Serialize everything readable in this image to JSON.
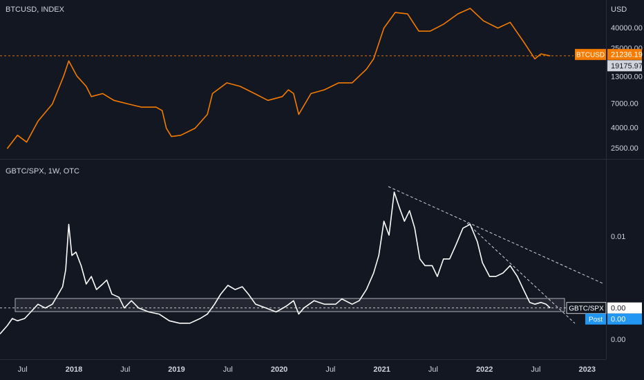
{
  "chart_data": [
    {
      "type": "line",
      "title": "BTCUSD, INDEX",
      "y_axis_label": "USD",
      "log_scale": true,
      "xlim": [
        2017.28,
        2023.17
      ],
      "ylim": [
        1970,
        77000
      ],
      "yticks": [
        {
          "value": 2500,
          "label": "2500.00"
        },
        {
          "value": 4000,
          "label": "4000.00"
        },
        {
          "value": 7000,
          "label": "7000.00"
        },
        {
          "value": 13000,
          "label": "13000.00"
        },
        {
          "value": 25000,
          "label": "25000.00"
        },
        {
          "value": 40000,
          "label": "40000.00"
        }
      ],
      "series": [
        {
          "name": "BTCUSD",
          "color": "#f57c00",
          "x": [
            2017.35,
            2017.45,
            2017.54,
            2017.65,
            2017.79,
            2017.9,
            2017.95,
            2018.03,
            2018.12,
            2018.17,
            2018.28,
            2018.39,
            2018.53,
            2018.66,
            2018.8,
            2018.86,
            2018.9,
            2018.95,
            2019.04,
            2019.18,
            2019.3,
            2019.35,
            2019.49,
            2019.62,
            2019.76,
            2019.89,
            2020.03,
            2020.09,
            2020.14,
            2020.19,
            2020.31,
            2020.44,
            2020.58,
            2020.71,
            2020.85,
            2020.92,
            2021.02,
            2021.13,
            2021.25,
            2021.36,
            2021.47,
            2021.6,
            2021.74,
            2021.86,
            2021.99,
            2022.13,
            2022.25,
            2022.38,
            2022.49,
            2022.55,
            2022.64
          ],
          "values": [
            2500,
            3400,
            2900,
            4700,
            7000,
            13300,
            18900,
            13300,
            10500,
            8300,
            8900,
            7600,
            7000,
            6500,
            6500,
            6000,
            4000,
            3300,
            3400,
            4000,
            5500,
            8900,
            11400,
            10500,
            8900,
            7600,
            8300,
            9700,
            8900,
            5500,
            8900,
            9700,
            11400,
            11400,
            15600,
            19800,
            40300,
            57700,
            55900,
            37500,
            37500,
            44000,
            55900,
            63500,
            47600,
            40300,
            46000,
            29500,
            19800,
            22200,
            21200
          ]
        }
      ],
      "price_labels": [
        {
          "name": "BTCUSD",
          "value": 21236.19,
          "color": "#f57c00"
        },
        {
          "value": 19175.97,
          "color": "#d1d4dc"
        }
      ]
    },
    {
      "type": "line",
      "title": "GBTC/SPX, 1W, OTC",
      "log_scale": true,
      "xlim": [
        2017.28,
        2023.17
      ],
      "ylim": [
        0.00148,
        0.0332
      ],
      "xticks": [
        {
          "value": 2017.5,
          "label": "Jul"
        },
        2018,
        {
          "value": 2018.5,
          "label": "Jul"
        },
        2019,
        {
          "value": 2019.5,
          "label": "Jul"
        },
        2020,
        {
          "value": 2020.5,
          "label": "Jul"
        },
        2021,
        {
          "value": 2021.5,
          "label": "Jul"
        },
        2022,
        {
          "value": 2022.5,
          "label": "Jul"
        },
        2023
      ],
      "yticks": [
        {
          "value": 0.002,
          "label": "0.00"
        },
        0.01
      ],
      "series": [
        {
          "name": "GBTC/SPX",
          "color": "#ffffff",
          "x": [
            2017.28,
            2017.35,
            2017.4,
            2017.45,
            2017.52,
            2017.58,
            2017.65,
            2017.72,
            2017.79,
            2017.83,
            2017.89,
            2017.92,
            2017.95,
            2017.98,
            2018.02,
            2018.07,
            2018.12,
            2018.17,
            2018.22,
            2018.28,
            2018.32,
            2018.37,
            2018.44,
            2018.49,
            2018.56,
            2018.63,
            2018.73,
            2018.83,
            2018.93,
            2019.03,
            2019.13,
            2019.23,
            2019.3,
            2019.37,
            2019.43,
            2019.5,
            2019.57,
            2019.64,
            2019.7,
            2019.77,
            2019.87,
            2019.97,
            2020.07,
            2020.14,
            2020.19,
            2020.24,
            2020.34,
            2020.44,
            2020.55,
            2020.61,
            2020.71,
            2020.78,
            2020.85,
            2020.92,
            2020.97,
            2021.02,
            2021.07,
            2021.12,
            2021.17,
            2021.22,
            2021.27,
            2021.32,
            2021.37,
            2021.42,
            2021.49,
            2021.54,
            2021.6,
            2021.66,
            2021.72,
            2021.79,
            2021.86,
            2021.93,
            2021.98,
            2022.05,
            2022.11,
            2022.18,
            2022.25,
            2022.32,
            2022.38,
            2022.44,
            2022.49,
            2022.55,
            2022.6,
            2022.64
          ],
          "values": [
            0.0022,
            0.0025,
            0.0028,
            0.0027,
            0.0028,
            0.0031,
            0.0035,
            0.0033,
            0.0035,
            0.0039,
            0.0046,
            0.006,
            0.0122,
            0.0075,
            0.0079,
            0.0064,
            0.0048,
            0.0054,
            0.0044,
            0.0048,
            0.0051,
            0.0041,
            0.0039,
            0.0033,
            0.0037,
            0.0033,
            0.0031,
            0.003,
            0.0027,
            0.0026,
            0.0026,
            0.0028,
            0.003,
            0.0035,
            0.0041,
            0.0047,
            0.0044,
            0.0046,
            0.0041,
            0.0035,
            0.0033,
            0.0031,
            0.0034,
            0.0037,
            0.003,
            0.0033,
            0.0037,
            0.0035,
            0.0035,
            0.0038,
            0.0035,
            0.0037,
            0.0044,
            0.0057,
            0.0075,
            0.0128,
            0.0103,
            0.0202,
            0.0159,
            0.0128,
            0.0151,
            0.0115,
            0.0071,
            0.0064,
            0.0064,
            0.0054,
            0.0071,
            0.0071,
            0.0088,
            0.0115,
            0.0122,
            0.0093,
            0.0067,
            0.0054,
            0.0054,
            0.0057,
            0.0064,
            0.0054,
            0.0044,
            0.0036,
            0.0035,
            0.0036,
            0.0035,
            0.0033
          ]
        }
      ],
      "price_labels": [
        {
          "name": "GBTC/SPX",
          "value": 0.0033,
          "value_label": "0.00",
          "color": "#ffffff"
        },
        {
          "name": "Post",
          "value": 0.0033,
          "value_label": "0.00",
          "color": "#2196f3"
        }
      ]
    }
  ]
}
